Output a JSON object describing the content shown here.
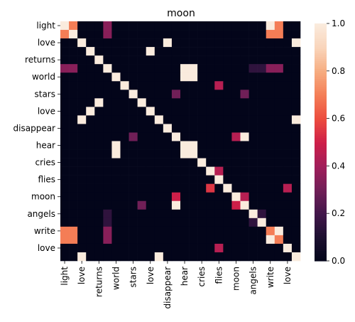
{
  "chart_data": {
    "type": "heatmap",
    "title": "moon",
    "xlabel": "",
    "ylabel": "",
    "labels": [
      "light",
      "light",
      "love",
      "love",
      "returns",
      "returns",
      "world",
      "world",
      "stars",
      "stars",
      "love",
      "love",
      "disappear",
      "disappear",
      "hear",
      "hear",
      "cries",
      "cries",
      "flies",
      "flies",
      "moon",
      "moon",
      "angels",
      "angels",
      "write",
      "write",
      "love",
      "love"
    ],
    "x_tick_labels": [
      "light",
      "love",
      "returns",
      "world",
      "stars",
      "love",
      "disappear",
      "hear",
      "cries",
      "flies",
      "moon",
      "angels",
      "write",
      "love"
    ],
    "y_tick_labels": [
      "light",
      "love",
      "returns",
      "world",
      "stars",
      "love",
      "disappear",
      "hear",
      "cries",
      "flies",
      "moon",
      "angels",
      "write",
      "love"
    ],
    "colorbar": {
      "min": 0.0,
      "max": 1.0,
      "ticks": [
        "0.0",
        "0.2",
        "0.4",
        "0.6",
        "0.8",
        "1.0"
      ]
    },
    "values": [
      [
        1,
        0.7,
        0,
        0,
        0,
        0.35,
        0,
        0,
        0,
        0,
        0,
        0,
        0,
        0,
        0,
        0,
        0,
        0,
        0,
        0,
        0,
        0,
        0,
        0,
        1,
        0.7,
        0,
        0
      ],
      [
        0.7,
        1,
        0,
        0,
        0,
        0.35,
        0,
        0,
        0,
        0,
        0,
        0,
        0,
        0,
        0,
        0,
        0,
        0,
        0,
        0,
        0,
        0,
        0,
        0,
        0.7,
        0.7,
        0,
        0
      ],
      [
        0,
        0,
        1,
        0,
        0,
        0,
        0,
        0,
        0,
        0,
        0,
        0,
        1,
        0,
        0,
        0,
        0,
        0,
        0,
        0,
        0,
        0,
        0,
        0,
        0,
        0,
        0,
        1
      ],
      [
        0,
        0,
        0,
        1,
        0,
        0,
        0,
        0,
        0,
        0,
        1,
        0,
        0,
        0,
        0,
        0,
        0,
        0,
        0,
        0,
        0,
        0,
        0,
        0,
        0,
        0,
        0,
        0
      ],
      [
        0,
        0,
        0,
        0,
        1,
        0,
        0,
        0,
        0,
        0,
        0,
        0,
        0,
        0,
        0,
        0,
        0,
        0,
        0,
        0,
        0,
        0,
        0,
        0,
        0,
        0,
        0,
        0
      ],
      [
        0.35,
        0.35,
        0,
        0,
        0,
        1,
        0,
        0,
        0,
        0,
        0,
        0,
        0,
        0,
        1,
        1,
        0,
        0,
        0,
        0,
        0,
        0,
        0.15,
        0.15,
        0.35,
        0.35,
        0,
        0
      ],
      [
        0,
        0,
        0,
        0,
        0,
        0,
        1,
        0,
        0,
        0,
        0,
        0,
        0,
        0,
        1,
        1,
        0,
        0,
        0,
        0,
        0,
        0,
        0,
        0,
        0,
        0,
        0,
        0
      ],
      [
        0,
        0,
        0,
        0,
        0,
        0,
        0,
        1,
        0,
        0,
        0,
        0,
        0,
        0,
        0,
        0,
        0,
        0,
        0.45,
        0,
        0,
        0,
        0,
        0,
        0,
        0,
        0,
        0
      ],
      [
        0,
        0,
        0,
        0,
        0,
        0,
        0,
        0,
        1,
        0,
        0,
        0,
        0,
        0.3,
        0,
        0,
        0,
        0,
        0,
        0,
        0,
        0.3,
        0,
        0,
        0,
        0,
        0,
        0
      ],
      [
        0,
        0,
        0,
        0,
        1,
        0,
        0,
        0,
        0,
        1,
        0,
        0,
        0,
        0,
        0,
        0,
        0,
        0,
        0,
        0,
        0,
        0,
        0,
        0,
        0,
        0,
        0,
        0
      ],
      [
        0,
        0,
        0,
        1,
        0,
        0,
        0,
        0,
        0,
        0,
        1,
        0,
        0,
        0,
        0,
        0,
        0,
        0,
        0,
        0,
        0,
        0,
        0,
        0,
        0,
        0,
        0,
        0
      ],
      [
        0,
        0,
        1,
        0,
        0,
        0,
        0,
        0,
        0,
        0,
        0,
        1,
        0,
        0,
        0,
        0,
        0,
        0,
        0,
        0,
        0,
        0,
        0,
        0,
        0,
        0,
        0,
        1
      ],
      [
        0,
        0,
        0,
        0,
        0,
        0,
        0,
        0,
        0,
        0,
        0,
        0,
        1,
        0,
        0,
        0,
        0,
        0,
        0,
        0,
        0,
        0,
        0,
        0,
        0,
        0,
        0,
        0
      ],
      [
        0,
        0,
        0,
        0,
        0,
        0,
        0,
        0,
        0.3,
        0,
        0,
        0,
        0,
        1,
        0,
        0,
        0,
        0,
        0,
        0,
        0.45,
        1,
        0,
        0,
        0,
        0,
        0,
        0
      ],
      [
        0,
        0,
        0,
        0,
        0,
        0,
        1,
        0,
        0,
        0,
        0,
        0,
        0,
        0,
        1,
        1,
        0,
        0,
        0,
        0,
        0,
        0,
        0,
        0,
        0,
        0,
        0,
        0
      ],
      [
        0,
        0,
        0,
        0,
        0,
        0,
        1,
        0,
        0,
        0,
        0,
        0,
        0,
        0,
        1,
        1,
        0,
        0,
        0,
        0,
        0,
        0,
        0,
        0,
        0,
        0,
        0,
        0
      ],
      [
        0,
        0,
        0,
        0,
        0,
        0,
        0,
        0,
        0,
        0,
        0,
        0,
        0,
        0,
        0,
        0,
        1,
        0,
        0,
        0,
        0,
        0,
        0,
        0,
        0,
        0,
        0,
        0
      ],
      [
        0,
        0,
        0,
        0,
        0,
        0,
        0,
        0,
        0,
        0,
        0,
        0,
        0,
        0,
        0,
        0,
        0,
        1,
        0.45,
        0,
        0,
        0,
        0,
        0,
        0,
        0,
        0,
        0
      ],
      [
        0,
        0,
        0,
        0,
        0,
        0,
        0,
        0,
        0,
        0,
        0,
        0,
        0,
        0,
        0,
        0,
        0,
        0,
        1,
        0,
        0,
        0,
        0,
        0,
        0,
        0,
        0,
        0
      ],
      [
        0,
        0,
        0,
        0,
        0,
        0,
        0,
        0,
        0,
        0,
        0,
        0,
        0,
        0,
        0,
        0,
        0,
        0.55,
        0,
        1,
        0,
        0,
        0,
        0,
        0,
        0,
        0.45,
        0
      ],
      [
        0,
        0,
        0,
        0,
        0,
        0,
        0,
        0,
        0,
        0,
        0,
        0,
        0,
        0.5,
        0,
        0,
        0,
        0,
        0,
        0,
        1,
        0.45,
        0,
        0,
        0,
        0,
        0,
        0
      ],
      [
        0,
        0,
        0,
        0,
        0,
        0,
        0,
        0,
        0,
        0.3,
        0,
        0,
        0,
        1,
        0,
        0,
        0,
        0,
        0,
        0,
        0.5,
        1,
        0,
        0,
        0,
        0,
        0,
        0
      ],
      [
        0,
        0,
        0,
        0,
        0,
        0.15,
        0,
        0,
        0,
        0,
        0,
        0,
        0,
        0,
        0,
        0,
        0,
        0,
        0,
        0,
        0,
        0,
        1,
        0.15,
        0,
        0,
        0,
        0
      ],
      [
        0,
        0,
        0,
        0,
        0,
        0.15,
        0,
        0,
        0,
        0,
        0,
        0,
        0,
        0,
        0,
        0,
        0,
        0,
        0,
        0,
        0,
        0,
        0.15,
        1,
        0,
        0,
        0,
        0
      ],
      [
        0.7,
        0.7,
        0,
        0,
        0,
        0.35,
        0,
        0,
        0,
        0,
        0,
        0,
        0,
        0,
        0,
        0,
        0,
        0,
        0,
        0,
        0,
        0,
        0,
        0,
        0.7,
        1,
        0,
        0
      ],
      [
        0.7,
        0.7,
        0,
        0,
        0,
        0.35,
        0,
        0,
        0,
        0,
        0,
        0,
        0,
        0,
        0,
        0,
        0,
        0,
        0,
        0,
        0,
        0,
        0,
        0,
        1,
        0.7,
        0,
        0
      ],
      [
        0,
        0,
        0,
        0,
        0,
        0,
        0,
        0,
        0,
        0,
        0,
        0,
        0,
        0,
        0,
        0,
        0,
        0,
        0.45,
        0,
        0,
        0,
        0,
        0,
        0,
        0,
        1,
        0
      ],
      [
        0,
        0,
        1,
        0,
        0,
        0,
        0,
        0,
        0,
        0,
        0,
        1,
        0,
        0,
        0,
        0,
        0,
        0,
        0,
        0,
        0,
        0,
        0,
        0,
        0,
        0,
        0,
        1
      ]
    ],
    "grid": false,
    "colormap": "rocket"
  }
}
